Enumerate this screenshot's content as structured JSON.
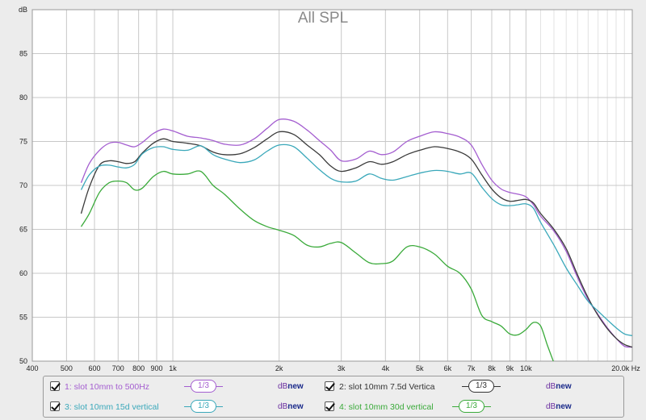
{
  "chart_data": {
    "type": "line",
    "title": "All SPL",
    "ylabel": "dB",
    "xlabel": "Hz",
    "xscale": "log",
    "xlim": [
      400,
      20000
    ],
    "ylim": [
      50,
      90
    ],
    "grid": true,
    "legend_position": "bottom",
    "x_ticks": [
      {
        "value": 400,
        "label": "400"
      },
      {
        "value": 500,
        "label": "500"
      },
      {
        "value": 600,
        "label": "600"
      },
      {
        "value": 700,
        "label": "700"
      },
      {
        "value": 800,
        "label": "800"
      },
      {
        "value": 900,
        "label": "900"
      },
      {
        "value": 1000,
        "label": "1k"
      },
      {
        "value": 2000,
        "label": "2k"
      },
      {
        "value": 3000,
        "label": "3k"
      },
      {
        "value": 4000,
        "label": "4k"
      },
      {
        "value": 5000,
        "label": "5k"
      },
      {
        "value": 6000,
        "label": "6k"
      },
      {
        "value": 7000,
        "label": "7k"
      },
      {
        "value": 8000,
        "label": "8k"
      },
      {
        "value": 9000,
        "label": "9k"
      },
      {
        "value": 10000,
        "label": "10k"
      },
      {
        "value": 20000,
        "label": "20.0k Hz"
      }
    ],
    "y_ticks": [
      {
        "value": 50,
        "label": "50"
      },
      {
        "value": 55,
        "label": "55"
      },
      {
        "value": 60,
        "label": "60"
      },
      {
        "value": 65,
        "label": "65"
      },
      {
        "value": 70,
        "label": "70"
      },
      {
        "value": 75,
        "label": "75"
      },
      {
        "value": 80,
        "label": "80"
      },
      {
        "value": 85,
        "label": "85"
      },
      {
        "value": 90,
        "label": "dB"
      }
    ],
    "series": [
      {
        "name": "1: slot 10mm to 500Hz",
        "color": "#a45ed0",
        "x": [
          550,
          580,
          620,
          660,
          700,
          740,
          780,
          820,
          880,
          940,
          1000,
          1100,
          1200,
          1300,
          1400,
          1550,
          1700,
          1850,
          2000,
          2200,
          2400,
          2600,
          2800,
          3000,
          3300,
          3600,
          3900,
          4200,
          4600,
          5000,
          5500,
          6000,
          6500,
          7000,
          7500,
          8000,
          8500,
          9000,
          9500,
          10000,
          10500,
          11000,
          12000,
          13000,
          14000,
          15000,
          16000,
          17000,
          18000,
          19000,
          20000
        ],
        "y": [
          70.3,
          72.5,
          74.0,
          74.8,
          74.9,
          74.6,
          74.4,
          74.9,
          75.9,
          76.4,
          76.2,
          75.6,
          75.4,
          75.1,
          74.7,
          74.6,
          75.3,
          76.5,
          77.5,
          77.3,
          76.3,
          75.1,
          74.0,
          72.8,
          73.0,
          73.9,
          73.5,
          73.8,
          75.0,
          75.6,
          76.1,
          75.9,
          75.5,
          74.6,
          72.4,
          70.6,
          69.6,
          69.2,
          69.0,
          68.7,
          67.8,
          66.5,
          64.8,
          62.5,
          59.5,
          57.0,
          55.3,
          53.8,
          52.6,
          51.7,
          51.6
        ]
      },
      {
        "name": "2: slot 10mm 7.5d Vertica",
        "color": "#3a3a3a",
        "x": [
          550,
          580,
          620,
          660,
          700,
          740,
          780,
          820,
          880,
          940,
          1000,
          1100,
          1200,
          1300,
          1400,
          1550,
          1700,
          1850,
          2000,
          2200,
          2400,
          2600,
          2800,
          3000,
          3300,
          3600,
          3900,
          4200,
          4600,
          5000,
          5500,
          6000,
          6500,
          7000,
          7500,
          8000,
          8500,
          9000,
          9500,
          10000,
          10500,
          11000,
          12000,
          13000,
          14000,
          15000,
          16000,
          17000,
          18000,
          19000,
          20000
        ],
        "y": [
          66.8,
          69.8,
          72.3,
          72.8,
          72.7,
          72.5,
          72.7,
          73.7,
          74.8,
          75.3,
          75.0,
          74.8,
          74.5,
          73.8,
          73.5,
          73.6,
          74.3,
          75.3,
          76.1,
          75.8,
          74.6,
          73.5,
          72.2,
          71.6,
          72.0,
          72.7,
          72.4,
          72.7,
          73.5,
          74.0,
          74.4,
          74.2,
          73.8,
          73.0,
          71.2,
          69.6,
          68.6,
          68.2,
          68.3,
          68.4,
          68.0,
          66.8,
          65.0,
          62.8,
          59.8,
          57.2,
          55.2,
          53.7,
          52.6,
          51.9,
          51.6
        ]
      },
      {
        "name": "3: slot 10mm 15d vertical",
        "color": "#3aa8ba",
        "x": [
          550,
          580,
          620,
          660,
          700,
          740,
          780,
          820,
          880,
          940,
          1000,
          1100,
          1200,
          1300,
          1400,
          1550,
          1700,
          1850,
          2000,
          2200,
          2400,
          2600,
          2800,
          3000,
          3300,
          3600,
          3900,
          4200,
          4600,
          5000,
          5500,
          6000,
          6500,
          7000,
          7500,
          8000,
          8500,
          9000,
          9500,
          10000,
          10500,
          11000,
          12000,
          13000,
          14000,
          15000,
          16000,
          17000,
          18000,
          19000,
          20000
        ],
        "y": [
          69.5,
          71.2,
          72.2,
          72.3,
          72.1,
          72.0,
          72.4,
          73.6,
          74.3,
          74.4,
          74.1,
          74.0,
          74.5,
          73.5,
          73.0,
          72.6,
          72.9,
          73.9,
          74.6,
          74.4,
          73.1,
          71.8,
          70.8,
          70.4,
          70.5,
          71.3,
          70.8,
          70.6,
          71.0,
          71.4,
          71.7,
          71.6,
          71.3,
          71.4,
          69.8,
          68.5,
          67.8,
          67.7,
          67.8,
          67.9,
          67.4,
          65.8,
          63.2,
          60.6,
          58.6,
          56.8,
          55.7,
          54.7,
          53.8,
          53.1,
          52.9
        ]
      },
      {
        "name": "4: slot 10mm 30d vertical",
        "color": "#3aaa3a",
        "x": [
          550,
          580,
          620,
          660,
          700,
          740,
          780,
          820,
          880,
          940,
          1000,
          1100,
          1200,
          1300,
          1400,
          1550,
          1700,
          1850,
          2000,
          2200,
          2400,
          2600,
          2800,
          3000,
          3300,
          3600,
          3900,
          4200,
          4600,
          5000,
          5500,
          6000,
          6500,
          7000,
          7500,
          8000,
          8500,
          9000,
          9500,
          10000,
          10500,
          11000,
          11500,
          12000
        ],
        "y": [
          65.3,
          66.8,
          69.2,
          70.3,
          70.5,
          70.3,
          69.5,
          69.7,
          71.0,
          71.6,
          71.3,
          71.3,
          71.6,
          70.0,
          69.0,
          67.3,
          66.0,
          65.3,
          64.9,
          64.3,
          63.2,
          63.0,
          63.4,
          63.5,
          62.3,
          61.2,
          61.1,
          61.4,
          63.0,
          63.0,
          62.2,
          60.8,
          60.0,
          58.2,
          55.2,
          54.5,
          54.0,
          53.1,
          53.0,
          53.6,
          54.4,
          54.0,
          51.8,
          49.8
        ]
      }
    ]
  },
  "legend": {
    "smoothing_label": "1/3",
    "db_label_b": "dB",
    "db_label_n": "new"
  }
}
